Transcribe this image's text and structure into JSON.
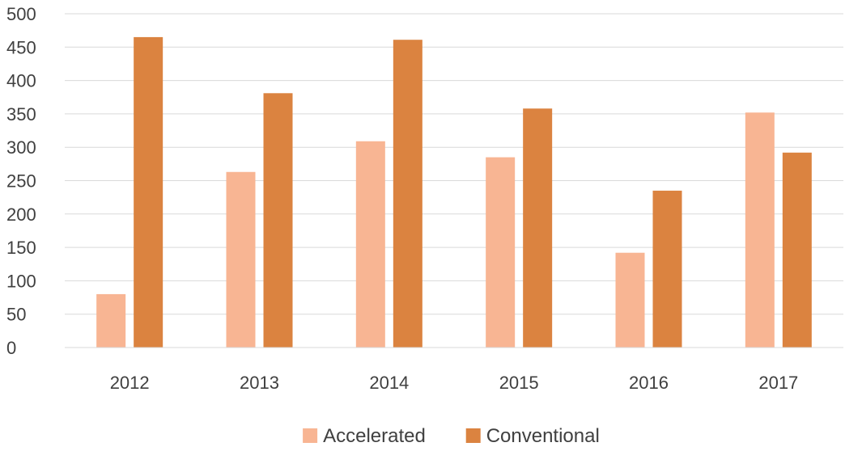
{
  "chart_data": {
    "type": "bar",
    "categories": [
      "2012",
      "2013",
      "2014",
      "2015",
      "2016",
      "2017"
    ],
    "series": [
      {
        "name": "Accelerated",
        "color": "#F8B593",
        "values": [
          80,
          263,
          309,
          285,
          142,
          352
        ]
      },
      {
        "name": "Conventional",
        "color": "#DB8340",
        "values": [
          465,
          381,
          461,
          358,
          235,
          292
        ]
      }
    ],
    "title": "",
    "xlabel": "",
    "ylabel": "",
    "ylim": [
      0,
      500
    ],
    "yticks": [
      "0",
      "50",
      "100",
      "150",
      "200",
      "250",
      "300",
      "350",
      "400",
      "450",
      "500"
    ],
    "grid": true,
    "legend_position": "bottom"
  }
}
